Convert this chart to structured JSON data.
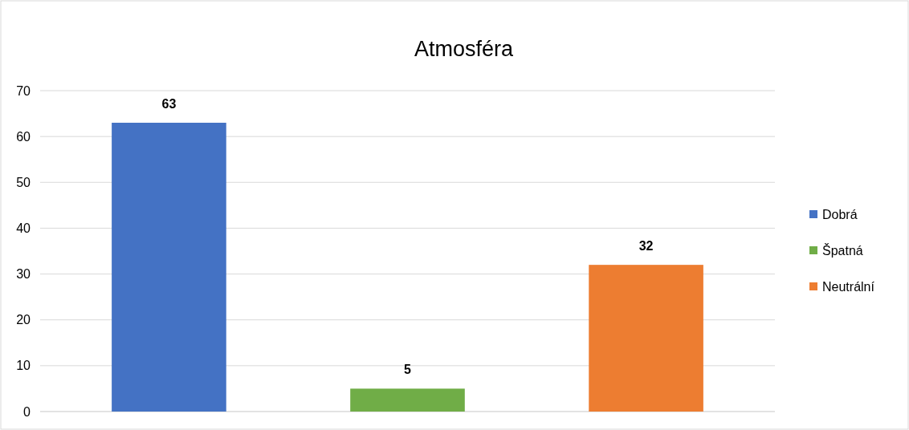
{
  "chart_data": {
    "type": "bar",
    "title": "Atmosféra",
    "categories": [
      null,
      null,
      null
    ],
    "series": [
      {
        "name": "Dobrá",
        "color": "#4472c4",
        "values": [
          63,
          null,
          null
        ]
      },
      {
        "name": "Špatná",
        "color": "#70ad47",
        "values": [
          null,
          5,
          null
        ]
      },
      {
        "name": "Neutrální",
        "color": "#ed7d31",
        "values": [
          null,
          null,
          32
        ]
      }
    ],
    "ylim": [
      0,
      70
    ],
    "yticks": [
      0,
      10,
      20,
      30,
      40,
      50,
      60,
      70
    ],
    "grid": "y",
    "legend": "right",
    "data_labels": true
  }
}
